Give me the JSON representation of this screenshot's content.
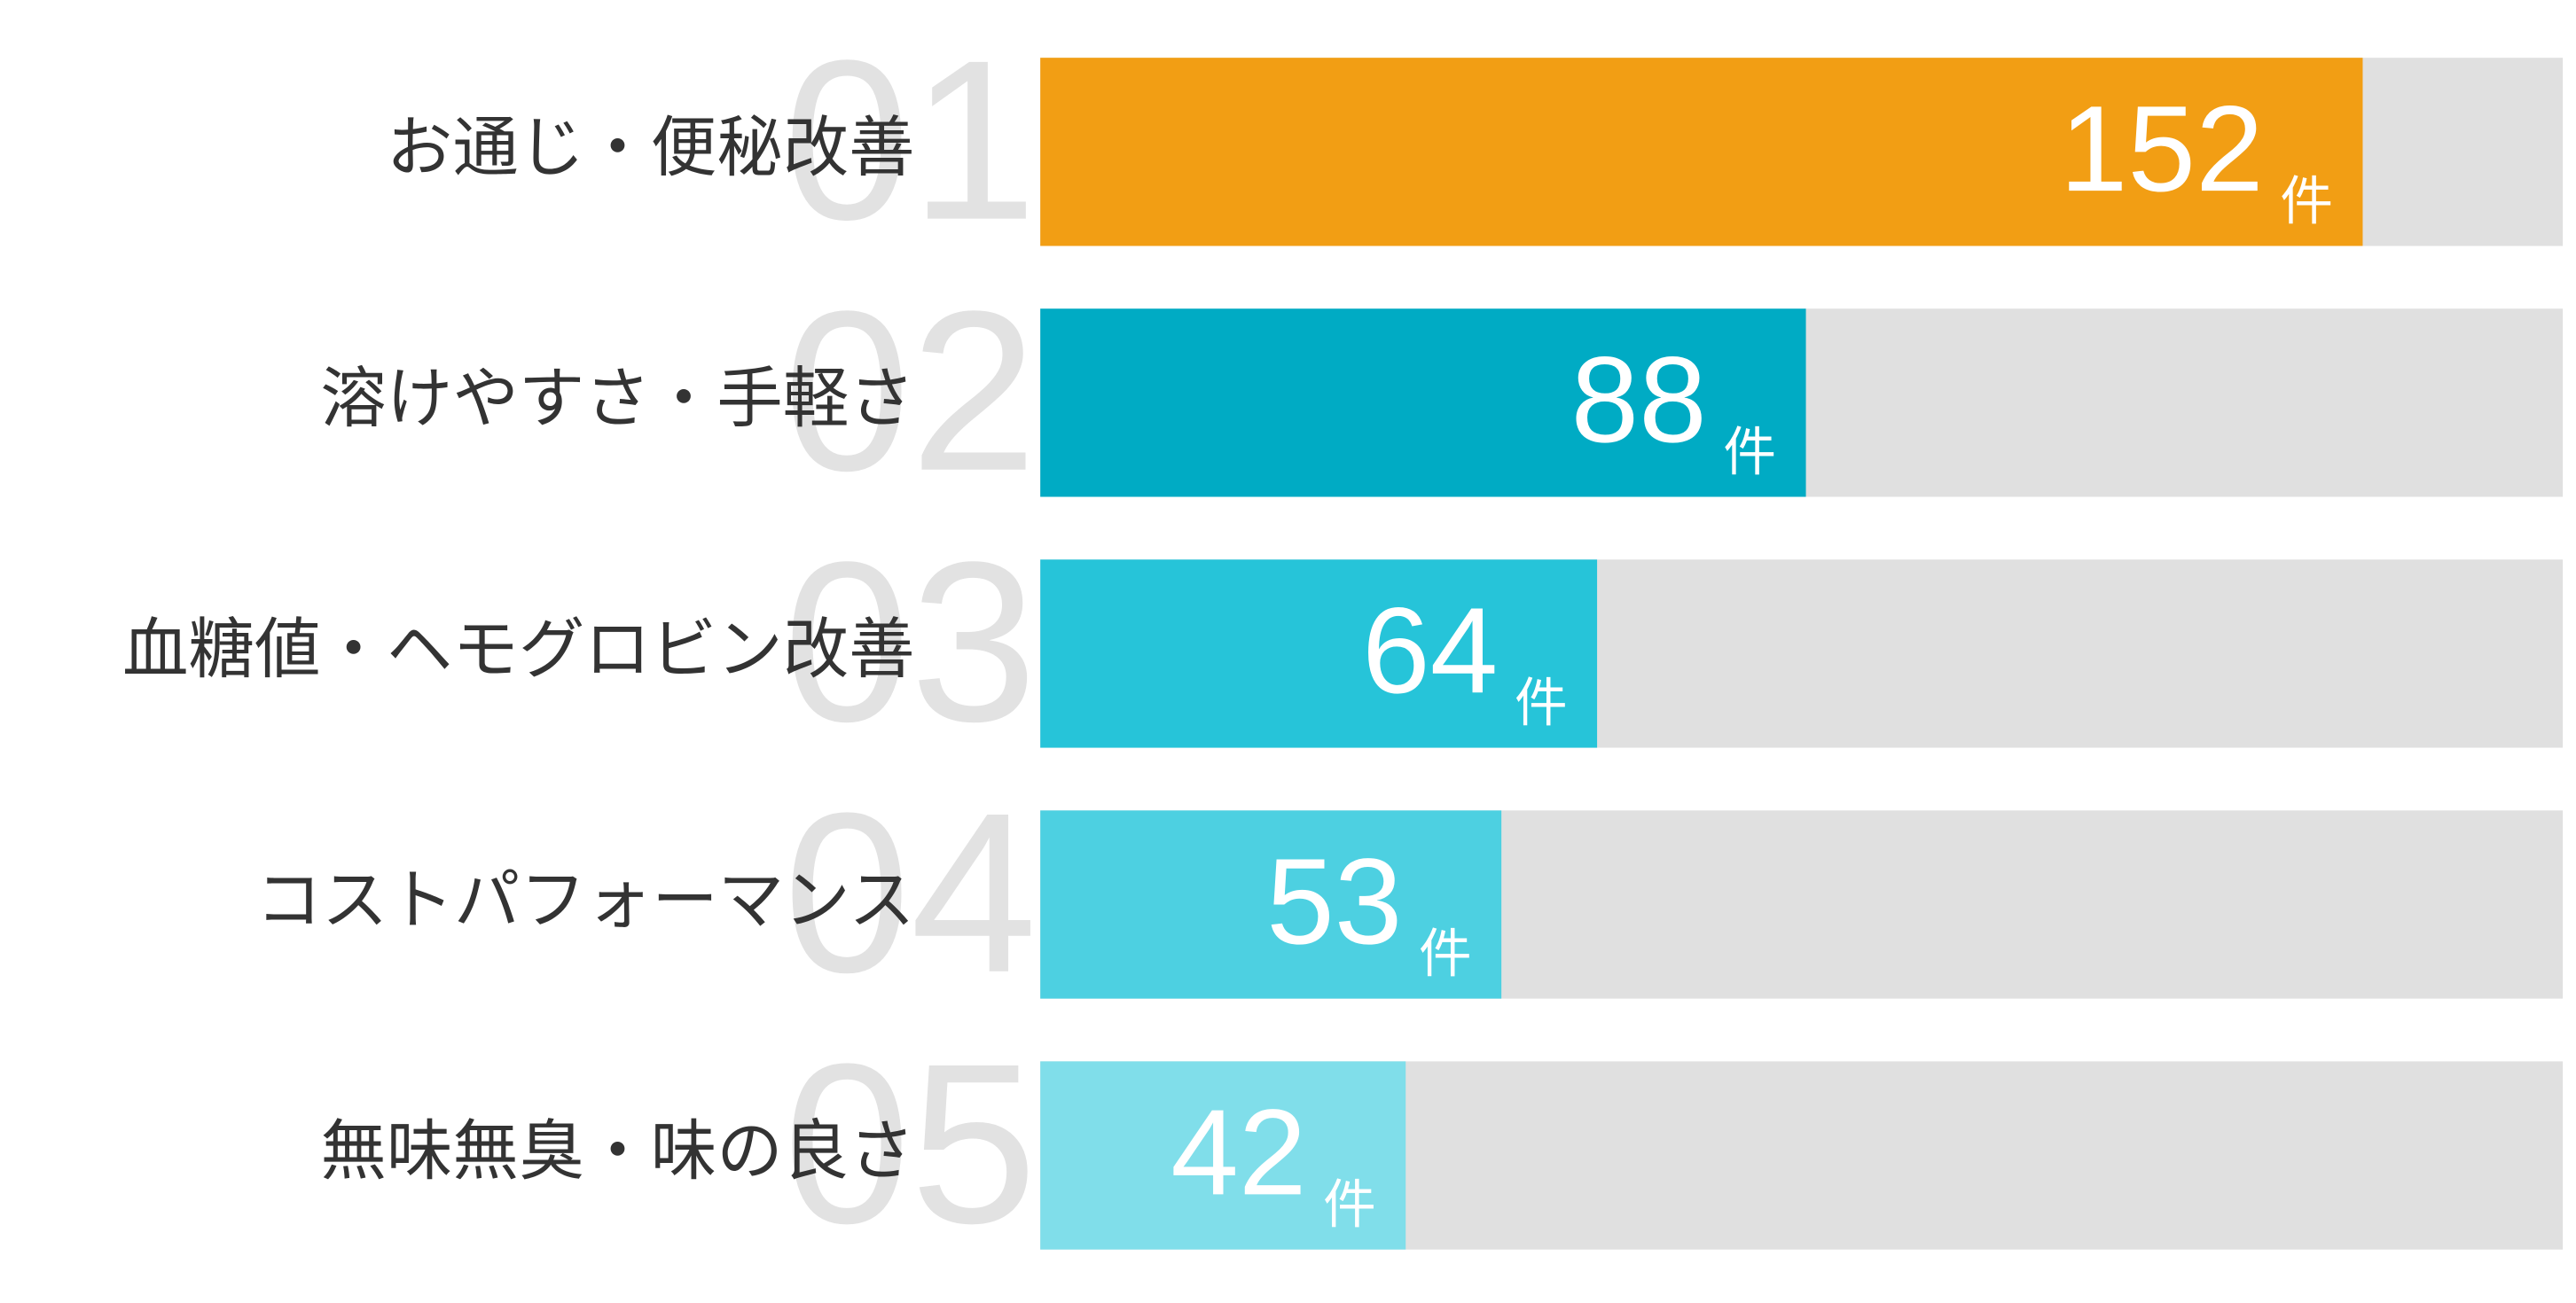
{
  "chart_data": {
    "type": "bar",
    "orientation": "horizontal",
    "categories": [
      "お通じ・便秘改善",
      "溶けやすさ・手軽さ",
      "血糖値・ヘモグロビン改善",
      "コストパフォーマンス",
      "無味無臭・味の良さ"
    ],
    "ranks": [
      "01",
      "02",
      "03",
      "04",
      "05"
    ],
    "values": [
      152,
      88,
      64,
      53,
      42
    ],
    "unit": "件",
    "colors": [
      "#f29e14",
      "#00abc4",
      "#26c4d9",
      "#4dd0e1",
      "#80deea"
    ],
    "xlim": [
      0,
      175
    ]
  }
}
